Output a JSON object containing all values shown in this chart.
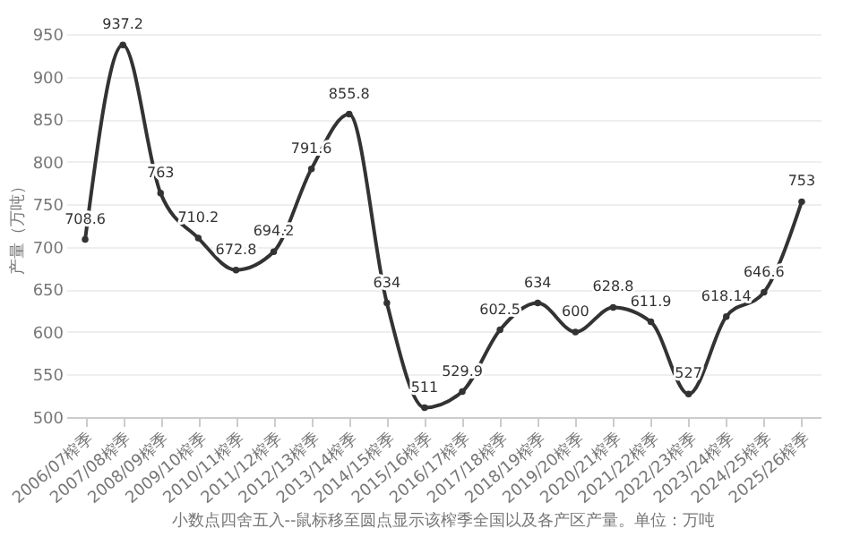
{
  "chart_data": {
    "type": "line",
    "ylabel": "产量（万吨）",
    "categories": [
      "2006/07榨季",
      "2007/08榨季",
      "2008/09榨季",
      "2009/10榨季",
      "2010/11榨季",
      "2011/12榨季",
      "2012/13榨季",
      "2013/14榨季",
      "2014/15榨季",
      "2015/16榨季",
      "2016/17榨季",
      "2017/18榨季",
      "2018/19榨季",
      "2019/20榨季",
      "2020/21榨季",
      "2021/22榨季",
      "2022/23榨季",
      "2023/24榨季",
      "2024/25榨季",
      "2025/26榨季"
    ],
    "series": [
      {
        "color": "#333333",
        "values": [
          708.6,
          937.2,
          763,
          710.2,
          672.8,
          694.2,
          791.6,
          855.8,
          634,
          511,
          529.9,
          602.5,
          634,
          600,
          628.8,
          611.9,
          527,
          618.14,
          646.6,
          753
        ]
      }
    ],
    "ylim": [
      500,
      950
    ],
    "yticks": [
      500,
      550,
      600,
      650,
      700,
      750,
      800,
      850,
      900,
      950
    ],
    "grid": "y",
    "marker": "circle",
    "data_labels": true,
    "annotations": [
      "小数点四舍五入--鼠标移至圆点显示该榨季全国以及各产区产量。单位：万吨"
    ]
  }
}
